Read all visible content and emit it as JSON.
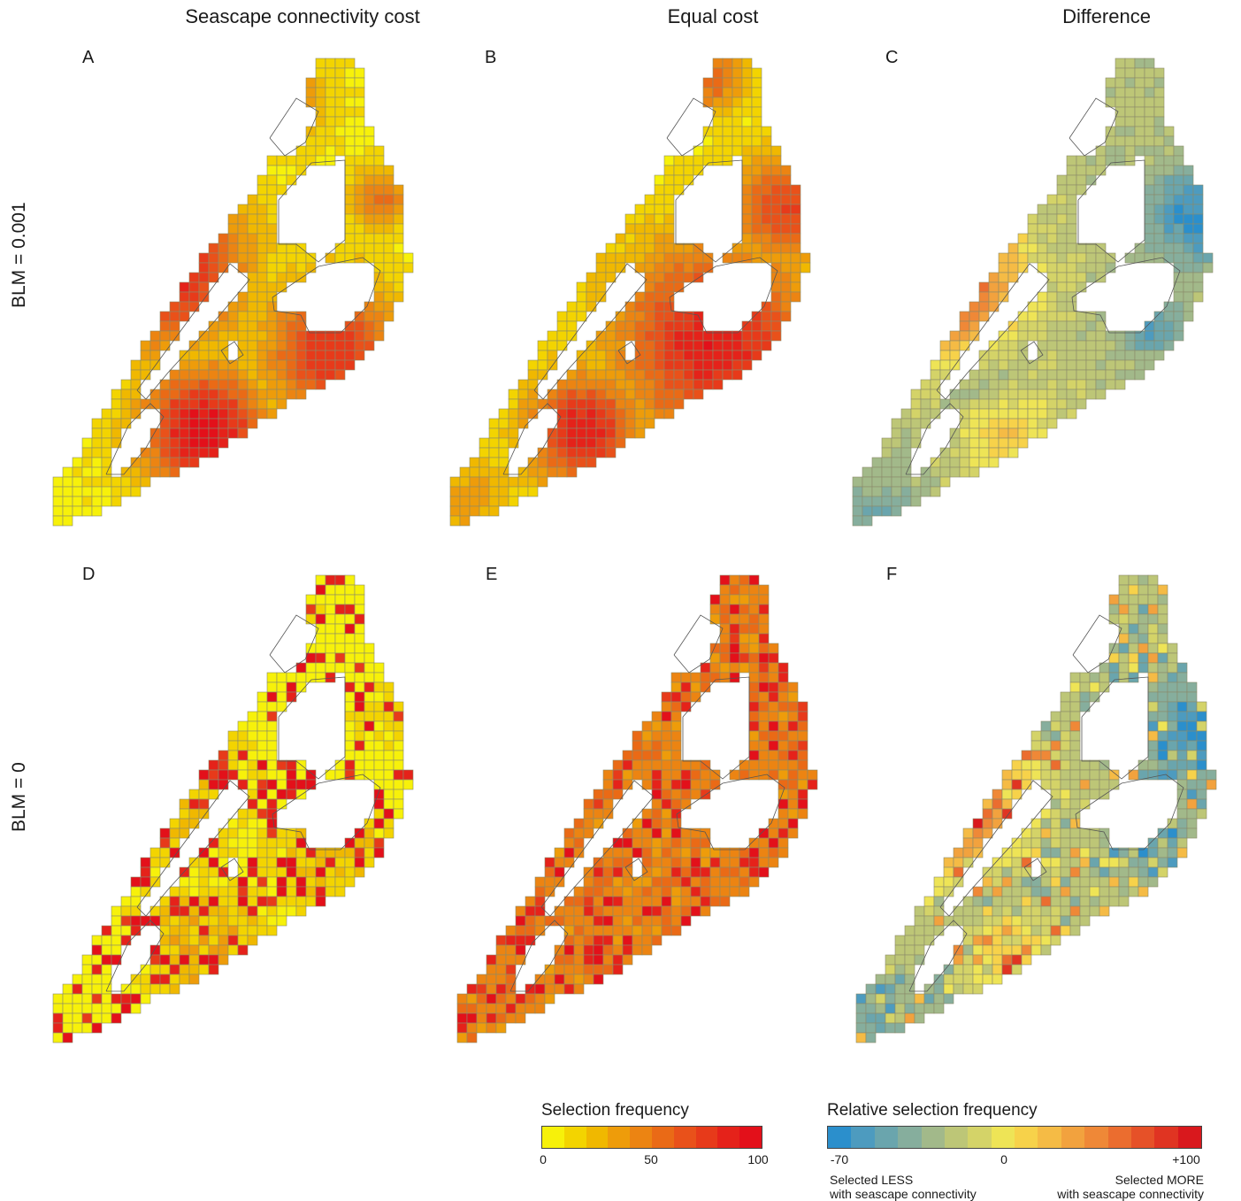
{
  "columns": {
    "seascape": "Seascape connectivity cost",
    "equal": "Equal cost",
    "difference": "Difference"
  },
  "rows": {
    "top": "BLM = 0.001",
    "bottom": "BLM = 0"
  },
  "panels": [
    {
      "letter": "A",
      "row": "top",
      "column": "seascape",
      "scale": "selection"
    },
    {
      "letter": "B",
      "row": "top",
      "column": "equal",
      "scale": "selection"
    },
    {
      "letter": "C",
      "row": "top",
      "column": "difference",
      "scale": "relative"
    },
    {
      "letter": "D",
      "row": "bottom",
      "column": "seascape",
      "scale": "selection"
    },
    {
      "letter": "E",
      "row": "bottom",
      "column": "equal",
      "scale": "selection"
    },
    {
      "letter": "F",
      "row": "bottom",
      "column": "difference",
      "scale": "relative"
    }
  ],
  "legend_selection": {
    "title": "Selection frequency",
    "tick_min": "0",
    "tick_mid": "50",
    "tick_max": "100",
    "colors": [
      "#f7f10a",
      "#f3d400",
      "#f0b800",
      "#ee9c0a",
      "#ec8412",
      "#ea6a16",
      "#e9511a",
      "#e73a1a",
      "#e5221a",
      "#e3101a"
    ]
  },
  "legend_relative": {
    "title": "Relative selection frequency",
    "tick_min": "-70",
    "tick_mid": "0",
    "tick_max": "+100",
    "note_less": "Selected LESS\nwith seascape connectivity",
    "note_more": "Selected MORE\nwith seascape connectivity",
    "colors": [
      "#2b8fcc",
      "#4d9bbf",
      "#6aa5ad",
      "#86ae9d",
      "#a2b98a",
      "#bdc677",
      "#d4d368",
      "#eee456",
      "#f7d24a",
      "#f5bb45",
      "#f2a23e",
      "#ef8837",
      "#eb6d2f",
      "#e65128",
      "#e03422",
      "#d9181d"
    ]
  }
}
